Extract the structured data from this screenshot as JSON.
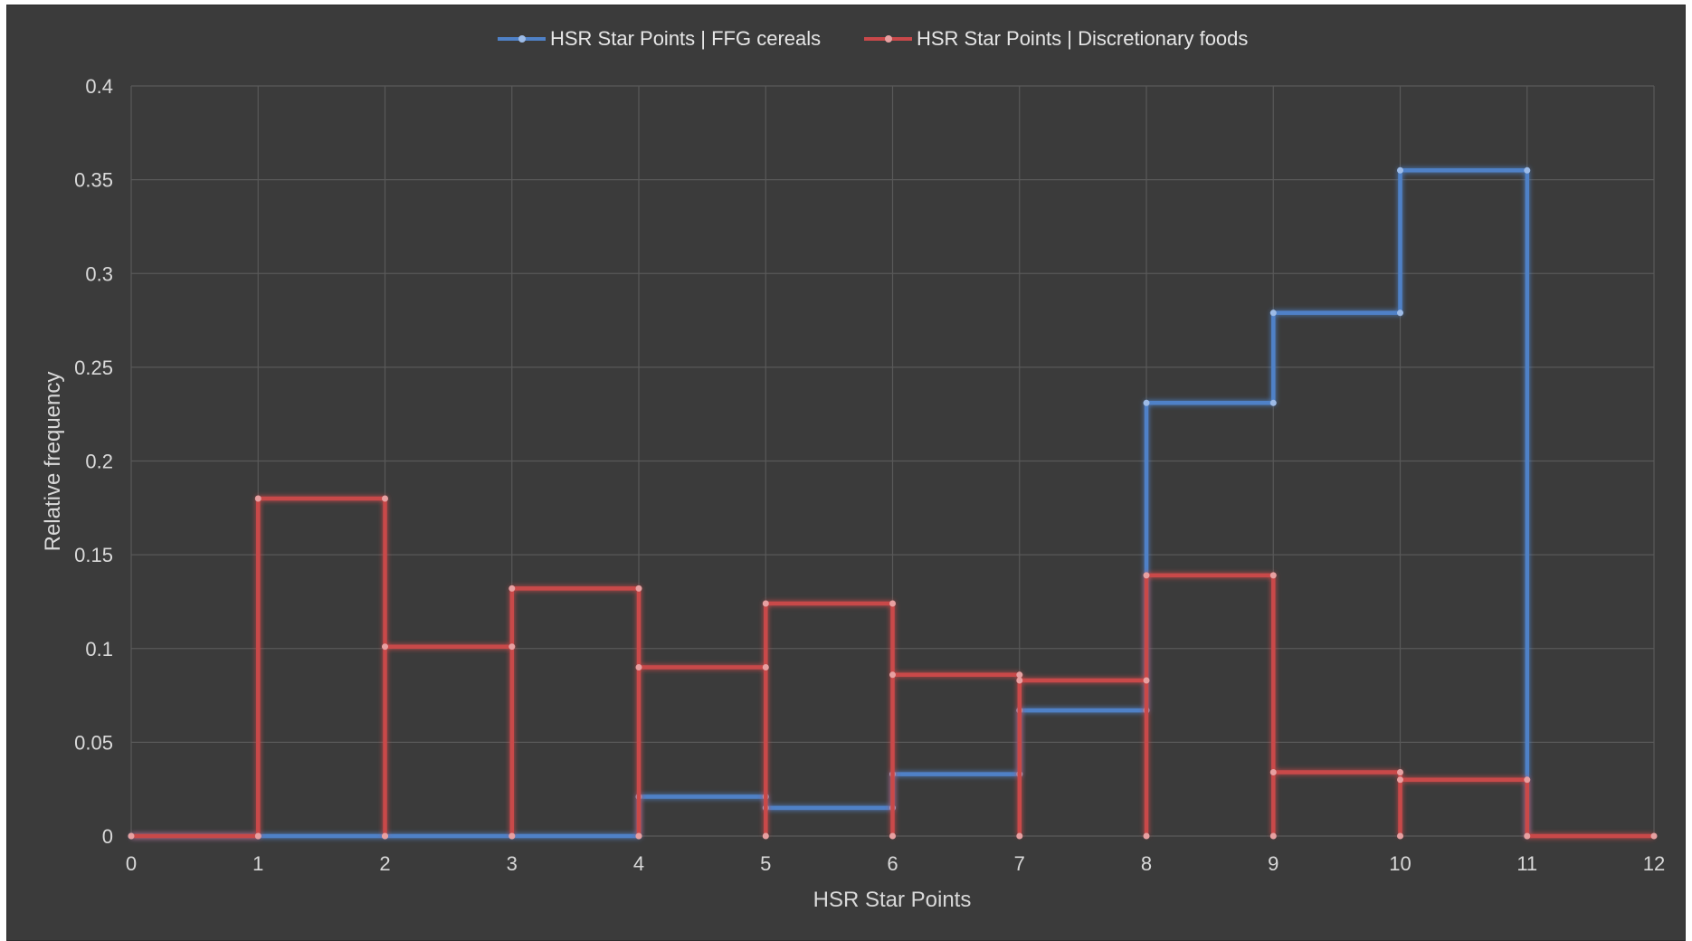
{
  "chart_data": {
    "type": "line",
    "subtype": "step",
    "title": "",
    "xlabel": "HSR Star Points",
    "ylabel": "Relative frequency",
    "xlim": [
      0,
      12
    ],
    "ylim": [
      0,
      0.4
    ],
    "x_ticks": [
      "0",
      "1",
      "2",
      "3",
      "4",
      "5",
      "6",
      "7",
      "8",
      "9",
      "10",
      "11",
      "12"
    ],
    "y_ticks": [
      "0",
      "0.05",
      "0.1",
      "0.15",
      "0.2",
      "0.25",
      "0.3",
      "0.35",
      "0.4"
    ],
    "grid": true,
    "legend_position": "top",
    "background": "#3b3b3b",
    "series": [
      {
        "name": "HSR Star Points | FFG cereals",
        "color": "#4f81c7",
        "points": [
          [
            0,
            0
          ],
          [
            1,
            0
          ],
          [
            2,
            0
          ],
          [
            3,
            0
          ],
          [
            4,
            0
          ],
          [
            4,
            0.021
          ],
          [
            5,
            0.021
          ],
          [
            5,
            0.015
          ],
          [
            6,
            0.015
          ],
          [
            6,
            0.033
          ],
          [
            7,
            0.033
          ],
          [
            7,
            0.067
          ],
          [
            8,
            0.067
          ],
          [
            8,
            0.231
          ],
          [
            9,
            0.231
          ],
          [
            9,
            0.279
          ],
          [
            10,
            0.279
          ],
          [
            10,
            0.355
          ],
          [
            11,
            0.355
          ],
          [
            11,
            0
          ]
        ]
      },
      {
        "name": "HSR Star Points | Discretionary foods",
        "color": "#c9484a",
        "points": [
          [
            0,
            0
          ],
          [
            1,
            0
          ],
          [
            1,
            0.18
          ],
          [
            2,
            0.18
          ],
          [
            2,
            0
          ],
          [
            2,
            0.101
          ],
          [
            3,
            0.101
          ],
          [
            3,
            0
          ],
          [
            3,
            0.132
          ],
          [
            4,
            0.132
          ],
          [
            4,
            0
          ],
          [
            4,
            0.09
          ],
          [
            5,
            0.09
          ],
          [
            5,
            0
          ],
          [
            5,
            0.124
          ],
          [
            6,
            0.124
          ],
          [
            6,
            0
          ],
          [
            6,
            0.086
          ],
          [
            7,
            0.086
          ],
          [
            7,
            0
          ],
          [
            7,
            0.083
          ],
          [
            8,
            0.083
          ],
          [
            8,
            0
          ],
          [
            8,
            0.139
          ],
          [
            9,
            0.139
          ],
          [
            9,
            0
          ],
          [
            9,
            0.034
          ],
          [
            10,
            0.034
          ],
          [
            10,
            0
          ],
          [
            10,
            0.03
          ],
          [
            11,
            0.03
          ],
          [
            11,
            0
          ],
          [
            12,
            0
          ]
        ]
      }
    ]
  }
}
